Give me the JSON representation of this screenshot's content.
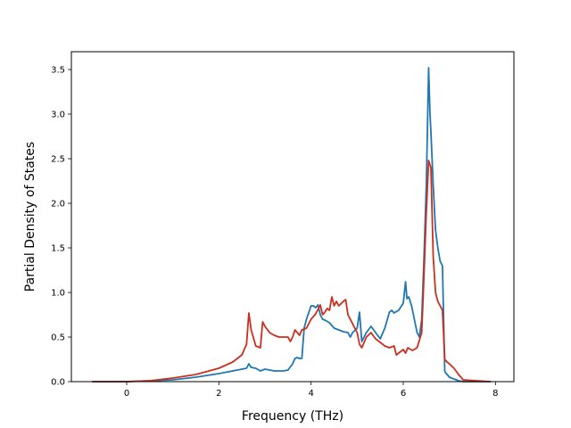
{
  "chart_data": {
    "type": "line",
    "title": "",
    "xlabel": "Frequency (THz)",
    "ylabel": "Partial Density of States",
    "xlim": [
      -1.2,
      8.4
    ],
    "ylim": [
      0.0,
      3.7
    ],
    "xticks": [
      0,
      2,
      4,
      6,
      8
    ],
    "yticks": [
      0.0,
      0.5,
      1.0,
      1.5,
      2.0,
      2.5,
      3.0,
      3.5
    ],
    "xtick_labels": [
      "0",
      "2",
      "4",
      "6",
      "8"
    ],
    "ytick_labels": [
      "0.0",
      "0.5",
      "1.0",
      "1.5",
      "2.0",
      "2.5",
      "3.0",
      "3.5"
    ],
    "grid": false,
    "legend": "none",
    "series": [
      {
        "color": "#1f77b4",
        "x": [
          -0.75,
          0.0,
          0.5,
          1.0,
          1.5,
          2.0,
          2.4,
          2.6,
          2.65,
          2.7,
          2.8,
          2.9,
          3.0,
          3.2,
          3.4,
          3.5,
          3.6,
          3.65,
          3.7,
          3.75,
          3.8,
          3.85,
          3.9,
          4.0,
          4.05,
          4.1,
          4.15,
          4.2,
          4.25,
          4.3,
          4.4,
          4.5,
          4.6,
          4.7,
          4.8,
          4.85,
          4.9,
          5.0,
          5.05,
          5.1,
          5.15,
          5.2,
          5.3,
          5.4,
          5.5,
          5.6,
          5.7,
          5.75,
          5.8,
          5.9,
          6.0,
          6.05,
          6.08,
          6.12,
          6.18,
          6.22,
          6.3,
          6.35,
          6.4,
          6.45,
          6.5,
          6.55,
          6.58,
          6.6,
          6.65,
          6.7,
          6.75,
          6.8,
          6.85,
          6.9,
          6.92,
          7.0,
          7.1,
          7.2,
          7.3,
          7.9
        ],
        "y": [
          0.0,
          0.0,
          0.01,
          0.02,
          0.05,
          0.09,
          0.13,
          0.15,
          0.2,
          0.16,
          0.15,
          0.12,
          0.14,
          0.12,
          0.12,
          0.13,
          0.2,
          0.26,
          0.27,
          0.26,
          0.26,
          0.6,
          0.7,
          0.85,
          0.85,
          0.83,
          0.86,
          0.75,
          0.7,
          0.69,
          0.66,
          0.6,
          0.58,
          0.56,
          0.55,
          0.5,
          0.55,
          0.6,
          0.78,
          0.45,
          0.5,
          0.55,
          0.62,
          0.55,
          0.48,
          0.6,
          0.78,
          0.8,
          0.77,
          0.8,
          0.88,
          1.12,
          0.93,
          0.95,
          0.85,
          0.75,
          0.55,
          0.5,
          0.7,
          1.4,
          2.2,
          3.52,
          3.0,
          2.8,
          2.2,
          1.7,
          1.5,
          1.35,
          1.3,
          0.12,
          0.1,
          0.05,
          0.03,
          0.01,
          0.0,
          0.0
        ]
      },
      {
        "color": "#cc2f1c",
        "x": [
          -0.75,
          0.0,
          0.5,
          1.0,
          1.5,
          2.0,
          2.3,
          2.5,
          2.6,
          2.65,
          2.7,
          2.8,
          2.9,
          2.95,
          3.0,
          3.1,
          3.2,
          3.3,
          3.5,
          3.55,
          3.6,
          3.65,
          3.7,
          3.75,
          3.8,
          3.9,
          4.0,
          4.1,
          4.2,
          4.25,
          4.3,
          4.35,
          4.4,
          4.45,
          4.5,
          4.55,
          4.6,
          4.7,
          4.75,
          4.8,
          4.85,
          4.9,
          5.0,
          5.05,
          5.1,
          5.2,
          5.3,
          5.4,
          5.5,
          5.6,
          5.7,
          5.8,
          5.85,
          5.9,
          6.0,
          6.05,
          6.1,
          6.2,
          6.3,
          6.4,
          6.45,
          6.5,
          6.55,
          6.6,
          6.65,
          6.7,
          6.75,
          6.8,
          6.85,
          6.9,
          6.95,
          7.0,
          7.1,
          7.2,
          7.3,
          7.9
        ],
        "y": [
          0.0,
          0.0,
          0.01,
          0.04,
          0.08,
          0.15,
          0.22,
          0.3,
          0.42,
          0.77,
          0.58,
          0.4,
          0.38,
          0.67,
          0.62,
          0.55,
          0.52,
          0.5,
          0.5,
          0.45,
          0.5,
          0.58,
          0.55,
          0.52,
          0.58,
          0.6,
          0.7,
          0.76,
          0.86,
          0.75,
          0.78,
          0.82,
          0.8,
          0.95,
          0.85,
          0.9,
          0.85,
          0.9,
          0.92,
          0.75,
          0.7,
          0.65,
          0.55,
          0.42,
          0.38,
          0.5,
          0.55,
          0.48,
          0.44,
          0.4,
          0.38,
          0.4,
          0.3,
          0.32,
          0.36,
          0.32,
          0.38,
          0.35,
          0.38,
          0.55,
          1.2,
          1.9,
          2.48,
          2.4,
          1.4,
          1.0,
          0.9,
          0.85,
          0.8,
          0.25,
          0.22,
          0.2,
          0.15,
          0.08,
          0.02,
          0.0
        ]
      }
    ]
  }
}
